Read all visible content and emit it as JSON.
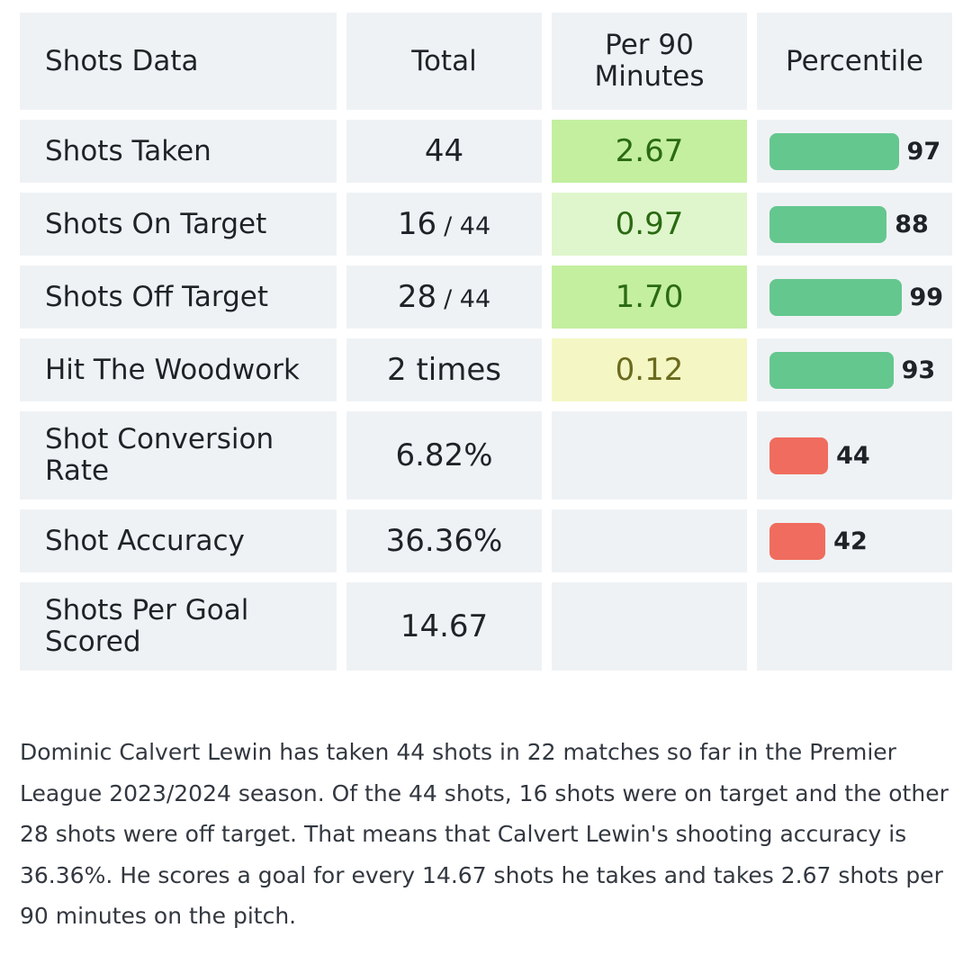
{
  "header": {
    "col1": "Shots Data",
    "col2": "Total",
    "col3": "Per 90 Minutes",
    "col4": "Percentile"
  },
  "rows": [
    {
      "label": "Shots Taken",
      "total": "44",
      "of": "",
      "per90": "2.67",
      "per90_color": "#c3ef9f",
      "percentile": 97,
      "bar_color": "#64c78e"
    },
    {
      "label": "Shots On Target",
      "total": "16",
      "of": "/ 44",
      "per90": "0.97",
      "per90_color": "#dff6cc",
      "percentile": 88,
      "bar_color": "#64c78e"
    },
    {
      "label": "Shots Off Target",
      "total": "28",
      "of": "/ 44",
      "per90": "1.70",
      "per90_color": "#c3ef9f",
      "percentile": 99,
      "bar_color": "#64c78e"
    },
    {
      "label": "Hit The Woodwork",
      "total": "2 times",
      "of": "",
      "per90": "0.12",
      "per90_color": "#f4f7c4",
      "percentile": 93,
      "bar_color": "#64c78e"
    },
    {
      "label": "Shot Conversion Rate",
      "total": "6.82%",
      "of": "",
      "per90": "",
      "percentile": 44,
      "bar_color": "#f06c5e"
    },
    {
      "label": "Shot Accuracy",
      "total": "36.36%",
      "of": "",
      "per90": "",
      "percentile": 42,
      "bar_color": "#f06c5e"
    },
    {
      "label": "Shots Per Goal Scored",
      "total": "14.67",
      "of": "",
      "per90": "",
      "percentile": null,
      "bar_color": ""
    }
  ],
  "description": "Dominic Calvert Lewin has taken 44 shots in 22 matches so far in the Premier League 2023/2024 season. Of the 44 shots, 16 shots were on target and the other 28 shots were off target. That means that Calvert Lewin's shooting accuracy is 36.36%. He scores a goal for every 14.67 shots he takes and takes 2.67 shots per 90 minutes on the pitch."
}
